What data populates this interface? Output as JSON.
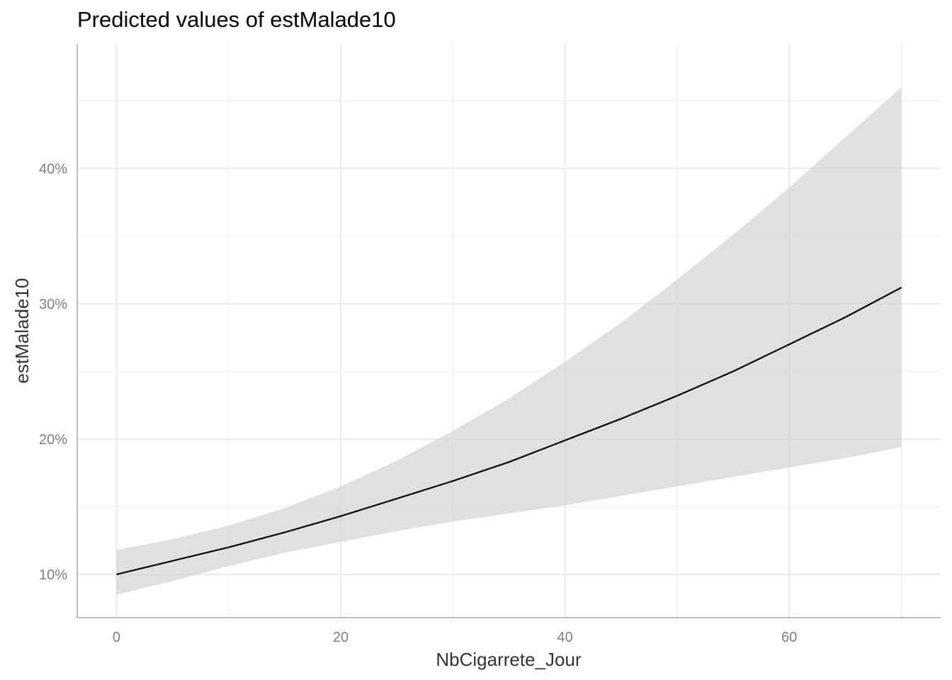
{
  "chart_data": {
    "type": "line",
    "title": "Predicted values of estMalade10",
    "xlabel": "NbCigarrete_Jour",
    "ylabel": "estMalade10",
    "xlim": [
      -3.5,
      73.5
    ],
    "ylim": [
      6.8,
      49.2
    ],
    "x_ticks": [
      0,
      20,
      40,
      60
    ],
    "x_tick_labels": [
      "0",
      "20",
      "40",
      "60"
    ],
    "y_ticks": [
      10,
      20,
      30,
      40
    ],
    "y_tick_labels": [
      "10%",
      "20%",
      "30%",
      "40%"
    ],
    "grid": true,
    "legend": "none",
    "colors": {
      "line": "#000000",
      "ribbon": "#d3d3d3",
      "grid": "#ebebeb",
      "axis": "#bfbfbf"
    },
    "series": [
      {
        "x": [
          0,
          5,
          10,
          15,
          20,
          25,
          30,
          35,
          40,
          45,
          50,
          55,
          60,
          65,
          70
        ],
        "y": [
          10.0,
          11.0,
          12.0,
          13.1,
          14.3,
          15.6,
          16.9,
          18.3,
          19.9,
          21.5,
          23.2,
          25.0,
          27.0,
          29.0,
          31.2
        ],
        "lower": [
          8.5,
          9.5,
          10.6,
          11.6,
          12.4,
          13.2,
          13.9,
          14.5,
          15.1,
          15.8,
          16.5,
          17.2,
          17.9,
          18.6,
          19.4
        ],
        "upper": [
          11.8,
          12.6,
          13.6,
          14.9,
          16.5,
          18.4,
          20.6,
          23.0,
          25.7,
          28.6,
          31.8,
          35.1,
          38.6,
          42.3,
          46.0
        ]
      }
    ]
  }
}
